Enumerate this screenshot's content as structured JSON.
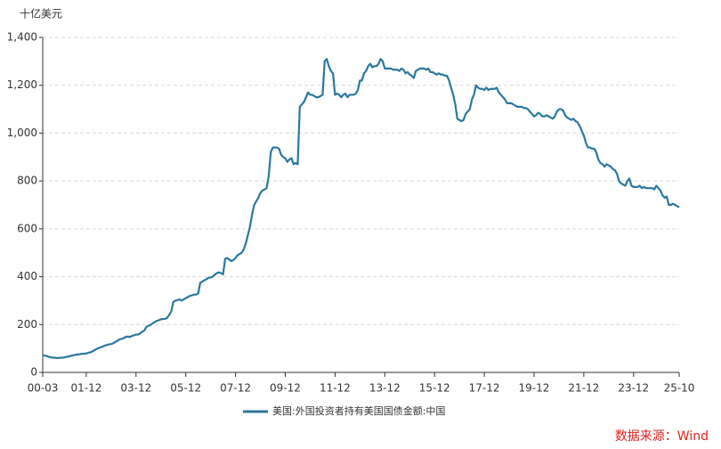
{
  "chart_data": {
    "type": "line",
    "y_axis_label": "十亿美元",
    "source": "数据来源：Wind",
    "categories": [
      "00-03",
      null,
      null,
      null,
      null,
      null,
      null,
      null,
      null,
      null,
      null,
      null,
      null,
      null,
      null,
      null,
      null,
      null,
      null,
      null,
      null,
      "01-12",
      null,
      null,
      null,
      null,
      null,
      null,
      null,
      null,
      null,
      null,
      null,
      null,
      null,
      null,
      null,
      null,
      null,
      null,
      null,
      null,
      null,
      null,
      null,
      "03-12",
      null,
      null,
      null,
      null,
      null,
      null,
      null,
      null,
      null,
      null,
      null,
      null,
      null,
      null,
      null,
      null,
      null,
      null,
      null,
      null,
      null,
      null,
      null,
      "05-12",
      null,
      null,
      null,
      null,
      null,
      null,
      null,
      null,
      null,
      null,
      null,
      null,
      null,
      null,
      null,
      null,
      null,
      null,
      null,
      null,
      null,
      null,
      null,
      "07-12",
      null,
      null,
      null,
      null,
      null,
      null,
      null,
      null,
      null,
      null,
      null,
      null,
      null,
      null,
      null,
      null,
      null,
      null,
      null,
      null,
      null,
      null,
      null,
      "09-12",
      null,
      null,
      null,
      null,
      null,
      null,
      null,
      null,
      null,
      null,
      null,
      null,
      null,
      null,
      null,
      null,
      null,
      null,
      null,
      null,
      null,
      null,
      null,
      "11-12",
      null,
      null,
      null,
      null,
      null,
      null,
      null,
      null,
      null,
      null,
      null,
      null,
      null,
      null,
      null,
      null,
      null,
      null,
      null,
      null,
      null,
      null,
      null,
      "13-12",
      null,
      null,
      null,
      null,
      null,
      null,
      null,
      null,
      null,
      null,
      null,
      null,
      null,
      null,
      null,
      null,
      null,
      null,
      null,
      null,
      null,
      null,
      null,
      "15-12",
      null,
      null,
      null,
      null,
      null,
      null,
      null,
      null,
      null,
      null,
      null,
      null,
      null,
      null,
      null,
      null,
      null,
      null,
      null,
      null,
      null,
      null,
      null,
      "17-12",
      null,
      null,
      null,
      null,
      null,
      null,
      null,
      null,
      null,
      null,
      null,
      null,
      null,
      null,
      null,
      null,
      null,
      null,
      null,
      null,
      null,
      null,
      null,
      "19-12",
      null,
      null,
      null,
      null,
      null,
      null,
      null,
      null,
      null,
      null,
      null,
      null,
      null,
      null,
      null,
      null,
      null,
      null,
      null,
      null,
      null,
      null,
      null,
      "21-12",
      null,
      null,
      null,
      null,
      null,
      null,
      null,
      null,
      null,
      null,
      null,
      null,
      null,
      null,
      null,
      null,
      null,
      null,
      null,
      null,
      null,
      null,
      null,
      "23-12",
      null,
      null,
      null,
      null,
      null,
      null,
      null,
      null,
      null,
      null,
      null,
      null,
      null,
      null,
      null,
      null,
      null,
      null,
      null,
      null,
      null,
      "25-10"
    ],
    "series": [
      {
        "name": "美国:外国投资者持有美国国债金额:中国",
        "color": "#2a78a0",
        "values": [
          71,
          70,
          68,
          65,
          63,
          62,
          61,
          60,
          61,
          61,
          62,
          64,
          66,
          68,
          70,
          72,
          74,
          75,
          76,
          78,
          78,
          79,
          82,
          84,
          88,
          93,
          98,
          102,
          105,
          108,
          112,
          115,
          117,
          118,
          122,
          127,
          132,
          138,
          140,
          143,
          148,
          150,
          148,
          152,
          155,
          158,
          158,
          163,
          170,
          175,
          190,
          195,
          198,
          205,
          210,
          215,
          218,
          222,
          223,
          224,
          228,
          240,
          255,
          295,
          300,
          302,
          305,
          300,
          305,
          310,
          315,
          320,
          322,
          325,
          325,
          330,
          375,
          380,
          385,
          390,
          395,
          397,
          400,
          408,
          415,
          418,
          415,
          410,
          475,
          478,
          472,
          465,
          470,
          478,
          490,
          495,
          500,
          515,
          540,
          575,
          610,
          660,
          700,
          715,
          730,
          750,
          760,
          765,
          770,
          820,
          920,
          940,
          940,
          940,
          935,
          910,
          900,
          895,
          880,
          890,
          895,
          870,
          875,
          870,
          1110,
          1120,
          1130,
          1150,
          1170,
          1160,
          1160,
          1155,
          1150,
          1150,
          1155,
          1160,
          1300,
          1310,
          1280,
          1260,
          1250,
          1160,
          1165,
          1160,
          1150,
          1160,
          1165,
          1150,
          1160,
          1160,
          1160,
          1165,
          1180,
          1220,
          1220,
          1250,
          1260,
          1280,
          1290,
          1275,
          1280,
          1280,
          1290,
          1310,
          1300,
          1270,
          1270,
          1270,
          1270,
          1265,
          1265,
          1265,
          1260,
          1270,
          1265,
          1250,
          1255,
          1245,
          1240,
          1230,
          1260,
          1265,
          1270,
          1270,
          1270,
          1265,
          1270,
          1255,
          1255,
          1250,
          1245,
          1250,
          1245,
          1245,
          1240,
          1240,
          1220,
          1190,
          1160,
          1120,
          1060,
          1055,
          1050,
          1055,
          1080,
          1090,
          1100,
          1140,
          1160,
          1200,
          1190,
          1185,
          1185,
          1180,
          1190,
          1180,
          1185,
          1185,
          1185,
          1190,
          1170,
          1160,
          1150,
          1140,
          1125,
          1125,
          1125,
          1120,
          1115,
          1110,
          1110,
          1110,
          1105,
          1105,
          1100,
          1090,
          1080,
          1070,
          1075,
          1085,
          1080,
          1070,
          1070,
          1075,
          1070,
          1065,
          1060,
          1070,
          1090,
          1100,
          1100,
          1095,
          1075,
          1065,
          1060,
          1055,
          1060,
          1050,
          1045,
          1030,
          1010,
          990,
          960,
          940,
          940,
          935,
          935,
          920,
          890,
          875,
          870,
          860,
          870,
          865,
          860,
          850,
          845,
          830,
          800,
          790,
          785,
          780,
          800,
          810,
          780,
          775,
          775,
          775,
          780,
          770,
          775,
          770,
          770,
          770,
          770,
          765,
          780,
          770,
          760,
          740,
          730,
          735,
          700,
          700,
          705,
          700,
          695,
          690
        ]
      }
    ],
    "ylim": [
      0,
      1400
    ],
    "yticks": [
      0,
      200,
      400,
      600,
      800,
      {
        "value": 1000,
        "label": "1,000"
      },
      {
        "value": 1200,
        "label": "1,200"
      },
      {
        "value": 1400,
        "label": "1,400"
      }
    ],
    "grid": true
  }
}
